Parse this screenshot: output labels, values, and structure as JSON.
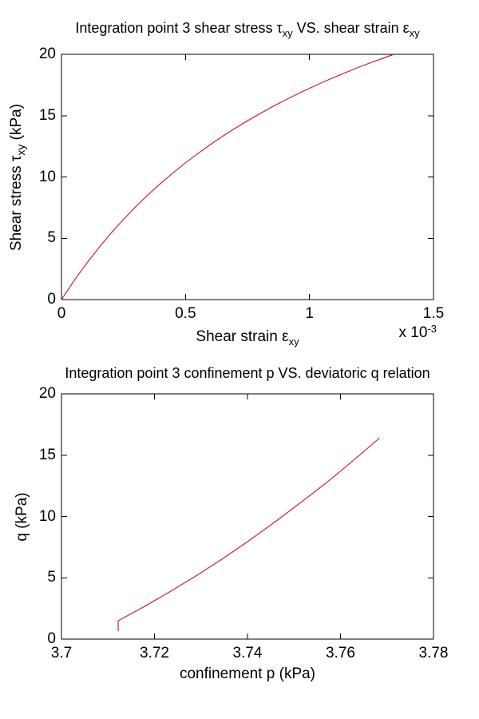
{
  "figure": {
    "background": "#ffffff",
    "axis_color": "#000000",
    "text_color": "#000000"
  },
  "chart_data": [
    {
      "type": "line",
      "title": "Integration point 3 shear stress τxy VS. shear strain εxy",
      "title_parts": [
        {
          "t": "Integration point 3 shear stress "
        },
        {
          "t": "τ"
        },
        {
          "t": "xy",
          "sub": true
        },
        {
          "t": " VS. shear strain "
        },
        {
          "t": "ε"
        },
        {
          "t": "xy",
          "sub": true
        }
      ],
      "xlabel": "Shear strain εxy",
      "xlabel_parts": [
        {
          "t": "Shear strain "
        },
        {
          "t": "ε"
        },
        {
          "t": "xy",
          "sub": true
        }
      ],
      "ylabel": "Shear stress τxy (kPa)",
      "ylabel_parts": [
        {
          "t": "Shear stress "
        },
        {
          "t": "τ"
        },
        {
          "t": "xy",
          "sub": true
        },
        {
          "t": " (kPa)"
        }
      ],
      "x_scale_label": "x 10-3",
      "x_scale_label_parts": [
        {
          "t": "x 10"
        },
        {
          "t": "-3",
          "sup": true
        }
      ],
      "x_unit_multiplier": "1e-3",
      "xlim": [
        0,
        1.5
      ],
      "ylim": [
        0,
        20
      ],
      "xtick_values": [
        0,
        0.5,
        1,
        1.5
      ],
      "xtick_labels": [
        "0",
        "0.5",
        "1",
        "1.5"
      ],
      "ytick_values": [
        0,
        5,
        10,
        15,
        20
      ],
      "ytick_labels": [
        "0",
        "5",
        "10",
        "15",
        "20"
      ],
      "grid": false,
      "legend": null,
      "series": [
        {
          "name": "shear stress vs shear strain",
          "color": "#cc2233",
          "x": [
            0,
            0.05,
            0.1,
            0.15,
            0.2,
            0.25,
            0.3,
            0.35,
            0.4,
            0.45,
            0.5,
            0.55,
            0.6,
            0.65,
            0.7,
            0.75,
            0.8,
            0.85,
            0.9,
            0.95,
            1.0,
            1.05,
            1.1,
            1.15,
            1.2,
            1.25,
            1.3,
            1.34
          ],
          "y": [
            0,
            1.52,
            2.92,
            4.21,
            5.42,
            6.54,
            7.58,
            8.56,
            9.48,
            10.34,
            11.15,
            11.91,
            12.64,
            13.32,
            13.97,
            14.58,
            15.16,
            15.72,
            16.25,
            16.75,
            17.23,
            17.69,
            18.13,
            18.55,
            18.96,
            19.34,
            19.71,
            20.0
          ]
        }
      ]
    },
    {
      "type": "line",
      "title": "Integration point 3 confinement p VS. deviatoric q relation",
      "title_parts": [
        {
          "t": "Integration point 3 confinement p VS. deviatoric q relation"
        }
      ],
      "xlabel": "confinement p (kPa)",
      "xlabel_parts": [
        {
          "t": "confinement p (kPa)"
        }
      ],
      "ylabel": "q (kPa)",
      "ylabel_parts": [
        {
          "t": "q (kPa)"
        }
      ],
      "xlim": [
        3.7,
        3.78
      ],
      "ylim": [
        0,
        20
      ],
      "xtick_values": [
        3.7,
        3.72,
        3.74,
        3.76,
        3.78
      ],
      "xtick_labels": [
        "3.7",
        "3.72",
        "3.74",
        "3.76",
        "3.78"
      ],
      "ytick_values": [
        0,
        5,
        10,
        15,
        20
      ],
      "ytick_labels": [
        "0",
        "5",
        "10",
        "15",
        "20"
      ],
      "grid": false,
      "legend": null,
      "series": [
        {
          "name": "deviatoric q vs confinement p",
          "color": "#cc2233",
          "x": [
            3.7122,
            3.7122,
            3.7178,
            3.7234,
            3.7291,
            3.7347,
            3.7403,
            3.7459,
            3.7515,
            3.7572,
            3.7628,
            3.7684
          ],
          "y": [
            0.65,
            1.5,
            2.65,
            3.88,
            5.19,
            6.57,
            8.02,
            9.55,
            11.15,
            12.82,
            14.58,
            16.4
          ]
        }
      ]
    }
  ]
}
